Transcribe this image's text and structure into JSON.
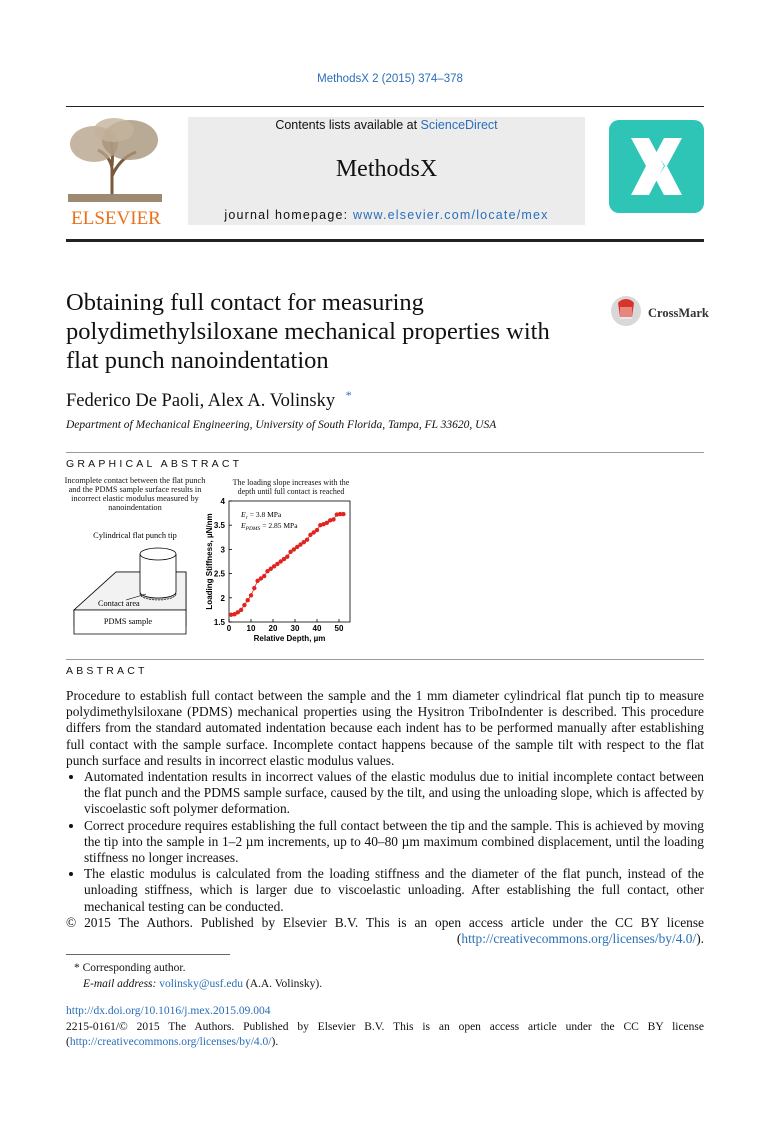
{
  "header": {
    "journal_ref": "MethodsX 2 (2015) 374–378",
    "contents": "Contents lists available at",
    "sciencedirect": "ScienceDirect",
    "journal": "MethodsX",
    "homepage_label": "journal homepage:",
    "homepage_url": "www.elsevier.com/locate/mex",
    "publisher": "ELSEVIER",
    "crossmark": "CrossMark"
  },
  "article": {
    "title": "Obtaining full contact for measuring polydimethylsiloxane mechanical properties with flat punch nanoindentation",
    "authors": "Federico De Paoli, Alex A. Volinsky",
    "asterisk": "*",
    "affiliation": "Department of Mechanical Engineering, University of South Florida, Tampa, FL 33620, USA"
  },
  "graphical_abstract": {
    "heading": "GRAPHICAL ABSTRACT",
    "caption": "Incomplete contact between the flat punch and the PDMS sample surface results in incorrect elastic modulus measured by nanoindentation",
    "tip_label": "Cylindrical flat punch tip",
    "contact_label": "Contact area",
    "sample_label": "PDMS sample"
  },
  "chart_data": {
    "type": "scatter",
    "title": "The loading slope increases with the depth until full contact is reached",
    "xlabel": "Relative Depth, µm",
    "ylabel": "Loading Stiffness, µN/nm",
    "annotations": [
      {
        "symbol": "E",
        "subscript": "r",
        "text": "= 3.8 MPa"
      },
      {
        "symbol": "E",
        "subscript": "PDMS",
        "text": "= 2.85 MPa"
      }
    ],
    "color": "#e0241f",
    "x": [
      1,
      2.5,
      4,
      5.5,
      7,
      8.5,
      10,
      11.5,
      13,
      14.5,
      16,
      17.5,
      19,
      20.5,
      22,
      23.5,
      25,
      26.5,
      28,
      29.5,
      31,
      32.5,
      34,
      35.5,
      37,
      38.5,
      40,
      41.5,
      43,
      44.5,
      46,
      47.5,
      49,
      50.5,
      52
    ],
    "values": [
      1.65,
      1.66,
      1.7,
      1.75,
      1.85,
      1.95,
      2.05,
      2.2,
      2.35,
      2.4,
      2.45,
      2.55,
      2.6,
      2.65,
      2.7,
      2.75,
      2.8,
      2.85,
      2.95,
      3.0,
      3.05,
      3.1,
      3.15,
      3.2,
      3.3,
      3.35,
      3.4,
      3.5,
      3.52,
      3.55,
      3.6,
      3.62,
      3.72,
      3.73,
      3.73
    ],
    "xlim": [
      0,
      55
    ],
    "ylim": [
      1.5,
      4
    ],
    "xticks": [
      0,
      10,
      20,
      30,
      40,
      50
    ],
    "yticks": [
      1.5,
      2,
      2.5,
      3,
      3.5,
      4
    ]
  },
  "abstract": {
    "heading": "ABSTRACT",
    "paragraph": "Procedure to establish full contact between the sample and the 1 mm diameter cylindrical flat punch tip to measure polydimethylsiloxane (PDMS) mechanical properties using the Hysitron TriboIndenter is described. This procedure differs from the standard automated indentation because each indent has to be performed manually after establishing full contact with the sample surface. Incomplete contact happens because of the sample tilt with respect to the flat punch surface and results in incorrect elastic modulus values.",
    "bullets": [
      "Automated indentation results in incorrect values of the elastic modulus due to initial incomplete contact between the flat punch and the PDMS sample surface, caused by the tilt, and using the unloading slope, which is affected by viscoelastic soft polymer deformation.",
      "Correct procedure requires establishing the full contact between the tip and the sample. This is achieved by moving the tip into the sample in 1–2 µm increments, up to 40–80 µm maximum combined displacement, until the loading stiffness no longer increases.",
      "The elastic modulus is calculated from the loading stiffness and the diameter of the flat punch, instead of the unloading stiffness, which is larger due to viscoelastic unloading. After establishing the full contact, other mechanical testing can be conducted."
    ],
    "license": "© 2015 The Authors. Published by Elsevier B.V. This is an open access article under the CC BY license (",
    "license_url": "http://creativecommons.org/licenses/by/4.0/",
    "license_end": ")."
  },
  "footnotes": {
    "corresponding": "* Corresponding author.",
    "email_label": "E-mail address:",
    "email": "volinsky@usf.edu",
    "email_owner": "(A.A. Volinsky).",
    "doi": "http://dx.doi.org/10.1016/j.mex.2015.09.004",
    "issn_license": "2215-0161/© 2015 The Authors. Published by Elsevier B.V. This is an open access article under the CC BY license (",
    "issn_license_url": "http://creativecommons.org/licenses/by/4.0/",
    "issn_license_end": ")."
  }
}
